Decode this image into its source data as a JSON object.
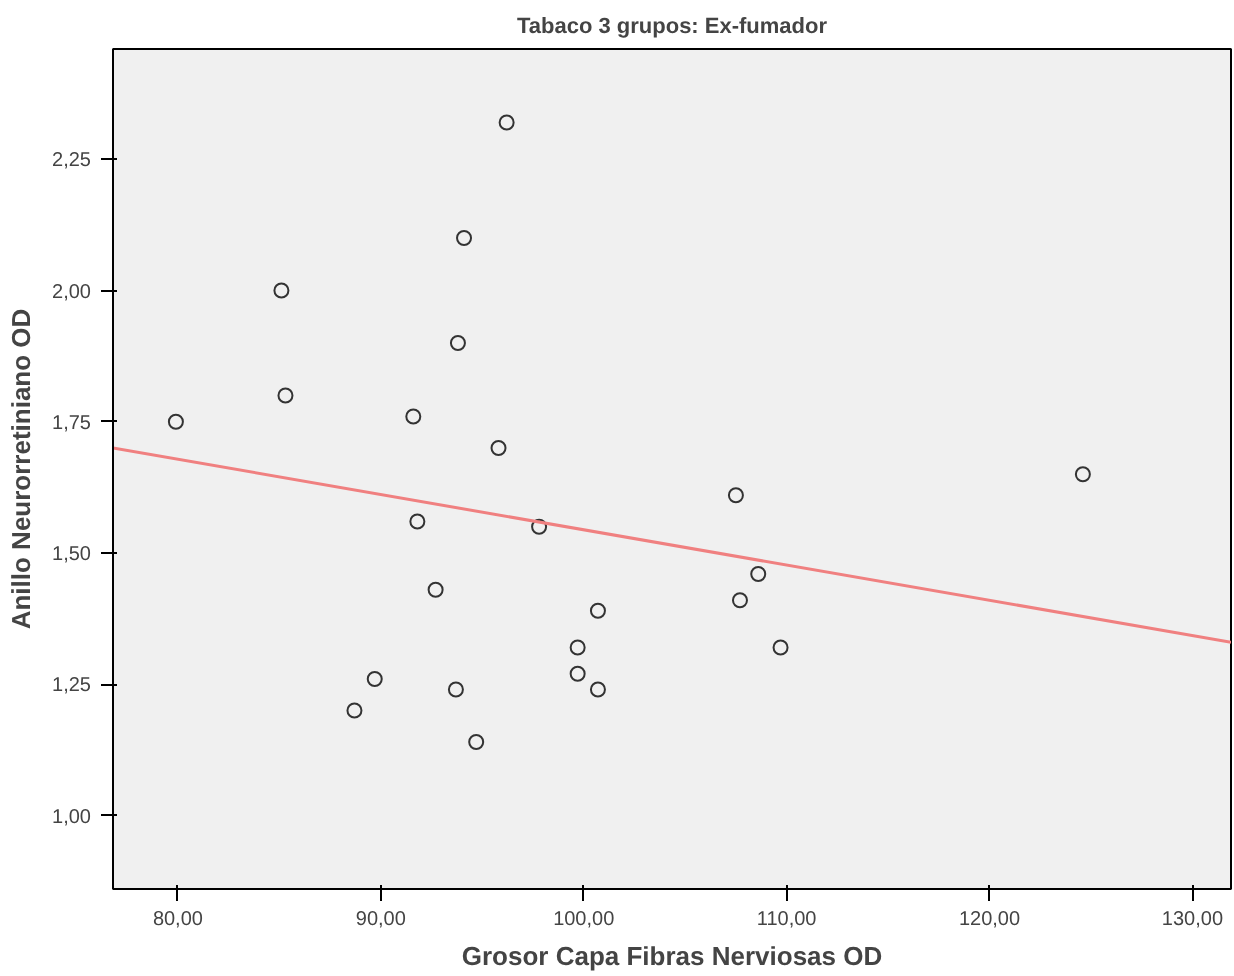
{
  "chart_data": {
    "type": "scatter",
    "title": "Tabaco 3 grupos: Ex-fumador",
    "xlabel": "Grosor Capa Fibras Nerviosas OD",
    "ylabel": "Anillo Neurorretiniano OD",
    "xlim": [
      76.8,
      131.9
    ],
    "ylim": [
      0.86,
      2.46
    ],
    "xticks": [
      {
        "value": 80,
        "label": "80,00"
      },
      {
        "value": 90,
        "label": "90,00"
      },
      {
        "value": 100,
        "label": "100,00"
      },
      {
        "value": 110,
        "label": "110,00"
      },
      {
        "value": 120,
        "label": "120,00"
      },
      {
        "value": 130,
        "label": "130,00"
      }
    ],
    "yticks": [
      {
        "value": 1.0,
        "label": "1,00"
      },
      {
        "value": 1.25,
        "label": "1,25"
      },
      {
        "value": 1.5,
        "label": "1,50"
      },
      {
        "value": 1.75,
        "label": "1,75"
      },
      {
        "value": 2.0,
        "label": "2,00"
      },
      {
        "value": 2.25,
        "label": "2,25"
      }
    ],
    "grid": false,
    "series": [
      {
        "marker": "circle",
        "color": "#333333",
        "x": [
          96.2,
          94.1,
          85.1,
          93.8,
          85.3,
          79.9,
          91.6,
          95.8,
          91.8,
          97.8,
          107.5,
          124.6,
          108.6,
          92.7,
          107.7,
          100.7,
          99.7,
          109.7,
          99.7,
          89.7,
          93.7,
          100.7,
          88.7,
          94.7
        ],
        "values": [
          2.32,
          2.1,
          2.0,
          1.9,
          1.8,
          1.75,
          1.76,
          1.7,
          1.56,
          1.55,
          1.61,
          1.65,
          1.46,
          1.43,
          1.41,
          1.39,
          1.32,
          1.32,
          1.27,
          1.26,
          1.24,
          1.24,
          1.2,
          1.14
        ]
      },
      {
        "type": "line",
        "marker": "none",
        "color": "#f08080",
        "x": [
          76.8,
          131.9
        ],
        "values": [
          1.7,
          1.33
        ]
      }
    ]
  }
}
